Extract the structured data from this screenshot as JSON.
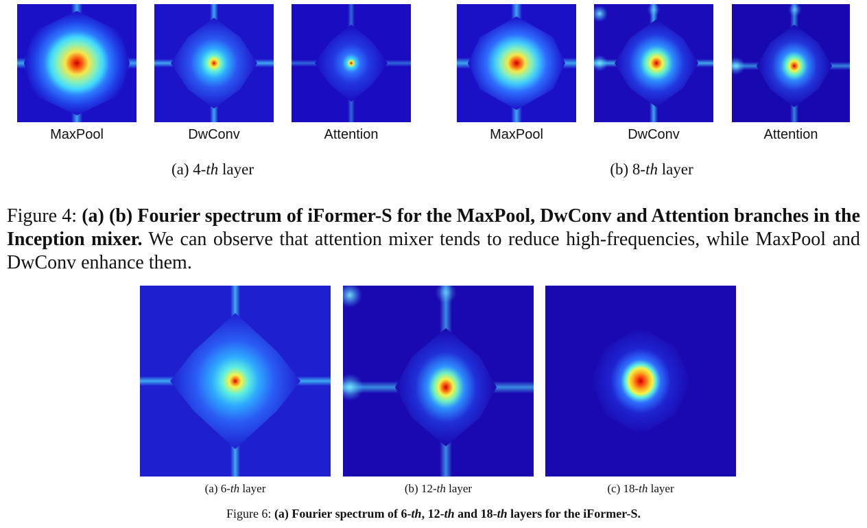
{
  "figure4": {
    "panels": [
      {
        "label": "MaxPool",
        "style": "maxpool"
      },
      {
        "label": "DwConv",
        "style": "dwconv"
      },
      {
        "label": "Attention",
        "style": "attention"
      },
      {
        "label": "MaxPool",
        "style": "maxpool8"
      },
      {
        "label": "DwConv",
        "style": "dwconv8"
      },
      {
        "label": "Attention",
        "style": "attention8"
      }
    ],
    "subcaption_a": {
      "prefix": "(a) 4-",
      "em": "th",
      "suffix": " layer"
    },
    "subcaption_b": {
      "prefix": "(b) 8-",
      "em": "th",
      "suffix": " layer"
    },
    "caption": {
      "lead": "Figure 4: ",
      "bold": "(a) (b) Fourier spectrum of iFormer-S for the MaxPool, DwConv and Attention branches in the Inception mixer.",
      "rest": " We can observe that attention mixer tends to reduce high-frequencies, while MaxPool and DwConv enhance them."
    }
  },
  "figure6": {
    "panels": [
      {
        "prefix": "(a) 6-",
        "em": "th",
        "suffix": " layer",
        "style": "l6"
      },
      {
        "prefix": "(b) 12-",
        "em": "th",
        "suffix": " layer",
        "style": "l12"
      },
      {
        "prefix": "(c) 18-",
        "em": "th",
        "suffix": " layer",
        "style": "l18"
      }
    ],
    "caption": {
      "lead": "Figure 6: ",
      "b1": "(a) Fourier spectrum of 6-",
      "em1": "th",
      "b2": ", 12-",
      "em2": "th",
      "b3": " and 18-",
      "em3": "th",
      "b4": " layers for the iFormer-S."
    }
  },
  "colormap": {
    "outer": "#1a00c8",
    "mid": "#2e6cff",
    "cyan": "#3fe8ff",
    "yellow": "#f4f44a",
    "orange": "#ff8a1c",
    "red": "#c80000"
  }
}
